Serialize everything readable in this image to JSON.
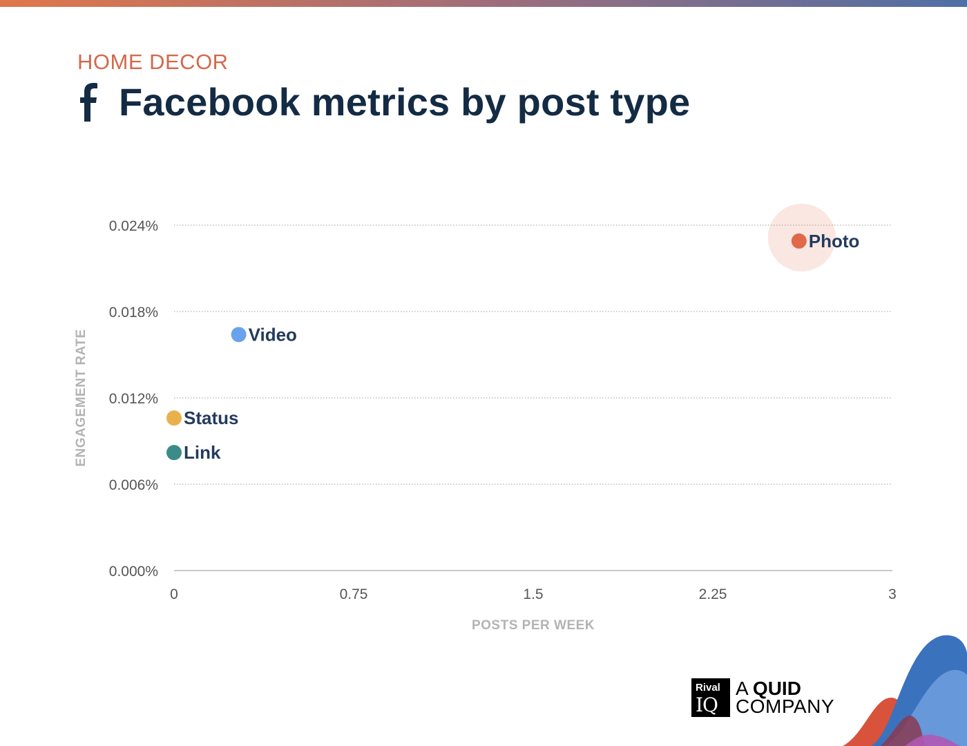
{
  "header": {
    "category": "HOME DECOR",
    "title": "Facebook metrics by post type",
    "category_color": "#d2694a",
    "title_color": "#142b44"
  },
  "brand": {
    "box_line1": "Rival",
    "box_line2": "IQ",
    "text_prefix": "A ",
    "text_bold": "QUID",
    "text_line2": "COMPANY"
  },
  "chart_data": {
    "type": "scatter",
    "title": "Facebook metrics by post type",
    "xlabel": "POSTS PER WEEK",
    "ylabel": "ENGAGEMENT RATE",
    "xlim": [
      0,
      3
    ],
    "ylim": [
      0,
      0.024
    ],
    "x_ticks": [
      0,
      0.75,
      1.5,
      2.25,
      3
    ],
    "x_tick_labels": [
      "0",
      "0.75",
      "1.5",
      "2.25",
      "3"
    ],
    "y_ticks": [
      0,
      0.006,
      0.012,
      0.018,
      0.024
    ],
    "y_tick_labels": [
      "0.000%",
      "0.006%",
      "0.012%",
      "0.018%",
      "0.024%"
    ],
    "grid": "horizontal dotted",
    "points": [
      {
        "label": "Photo",
        "x": 2.61,
        "y": 0.0229,
        "color": "#e0694a",
        "highlight": true
      },
      {
        "label": "Video",
        "x": 0.27,
        "y": 0.0164,
        "color": "#6aa2ee"
      },
      {
        "label": "Status",
        "x": 0.0,
        "y": 0.0106,
        "color": "#e9b04e"
      },
      {
        "label": "Link",
        "x": 0.0,
        "y": 0.0082,
        "color": "#3d8b89"
      }
    ],
    "label_color": "#243a5e",
    "tick_color": "#555555"
  }
}
